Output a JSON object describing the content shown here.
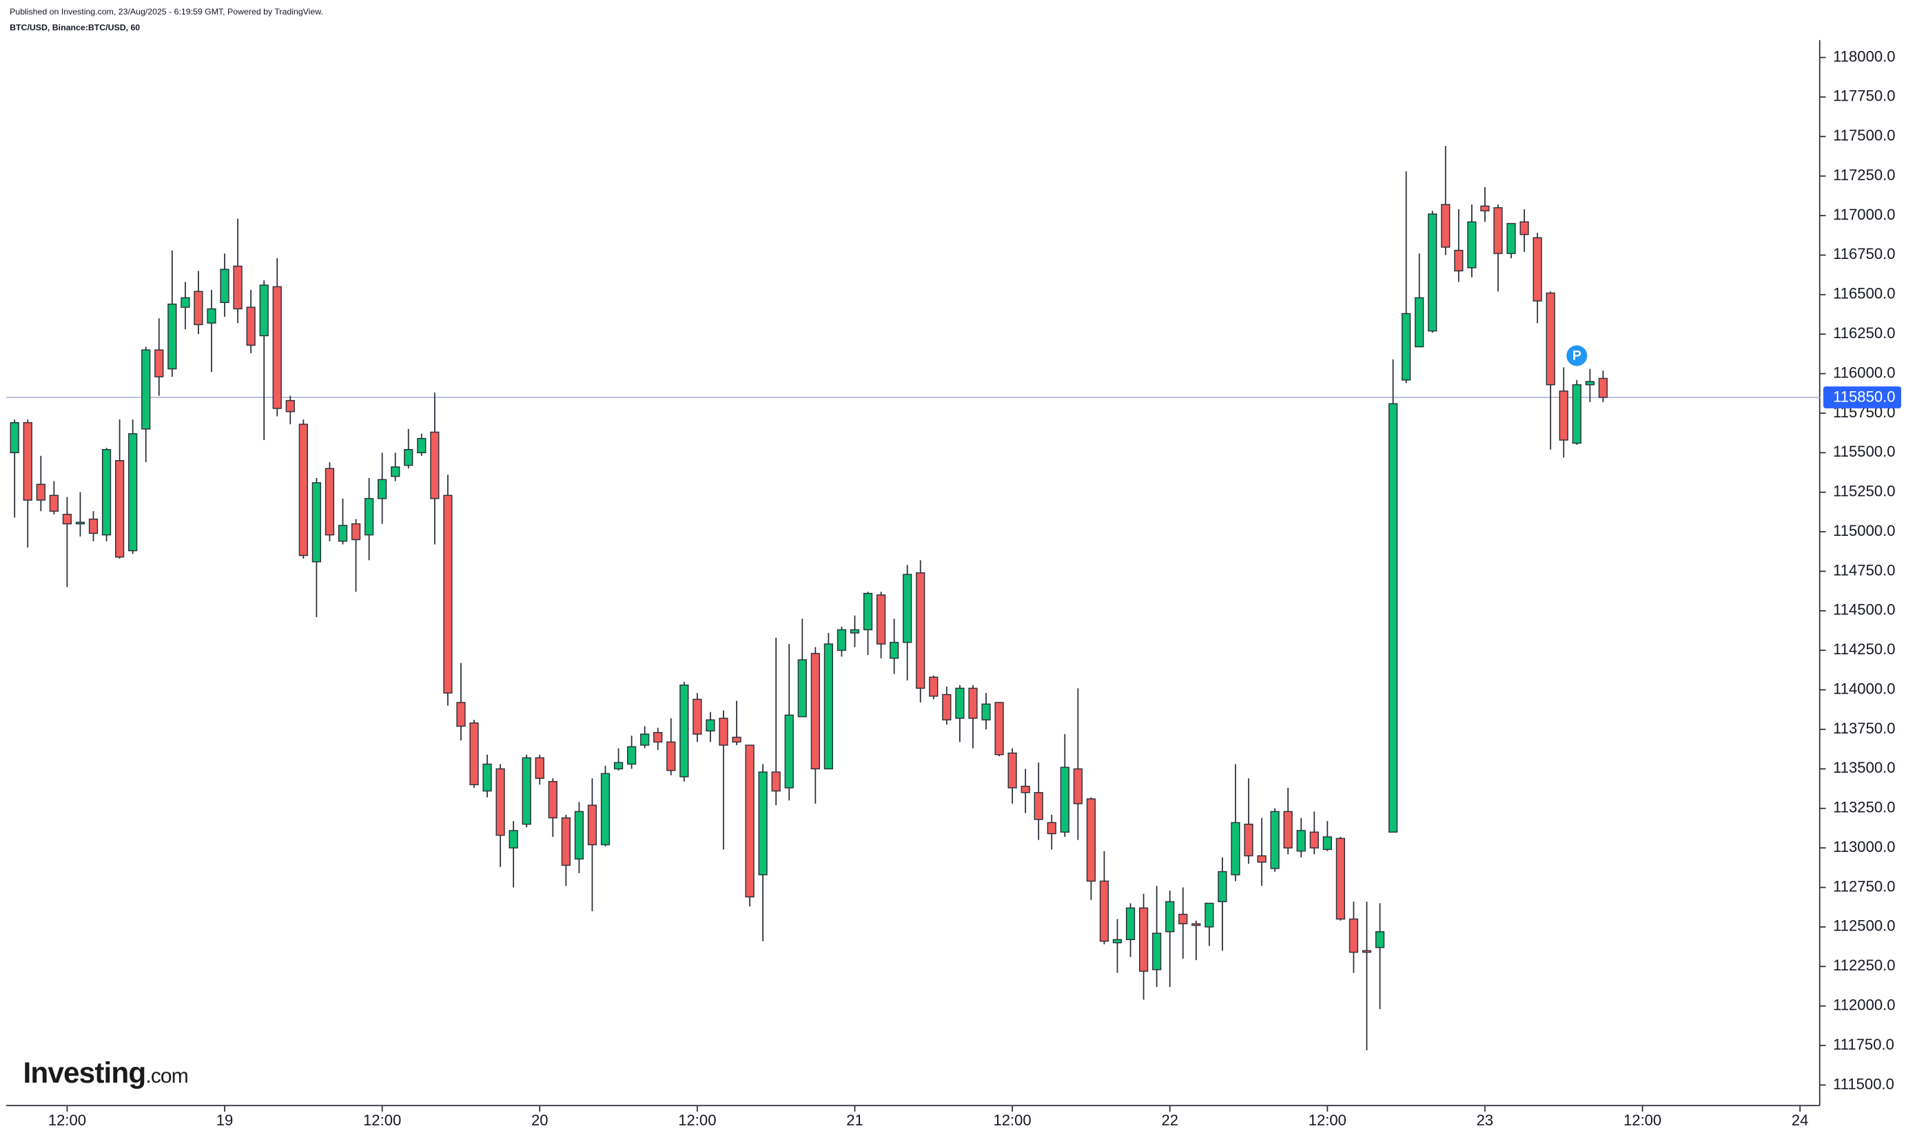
{
  "header": {
    "published": "Published on Investing.com, 23/Aug/2025 - 6:19:59 GMT, Powered by TradingView.",
    "symbol": "BTC/USD, Binance:BTC/USD, 60"
  },
  "logo": {
    "name": "Investing",
    "suffix": ".com"
  },
  "chart_data": {
    "type": "candlestick",
    "up_color": "#0cbf73",
    "down_color": "#f05d5b",
    "outline_color": "#2a2e39",
    "categories": [
      null,
      null,
      null,
      null,
      null,
      null,
      null,
      null,
      null,
      null,
      null,
      null,
      null,
      null,
      null,
      null,
      null,
      null,
      null,
      null,
      null,
      null,
      null,
      null,
      null,
      null,
      null,
      null,
      null,
      null,
      null,
      null,
      null,
      null,
      null,
      null,
      null,
      null,
      null,
      null,
      null,
      null,
      null,
      null,
      null,
      null,
      null,
      null,
      null,
      null,
      null,
      null,
      null,
      null,
      null,
      null,
      null,
      null,
      null,
      null,
      null,
      null,
      null,
      null,
      null,
      null,
      null,
      null,
      null,
      null,
      null,
      null,
      null,
      null,
      null,
      null,
      null,
      null,
      null,
      null,
      null,
      null,
      null,
      null,
      null,
      null,
      null,
      null,
      null,
      null,
      null,
      null,
      null,
      null,
      null,
      null,
      null,
      null,
      null,
      null,
      null,
      null,
      null,
      null,
      null,
      null,
      null,
      null,
      null,
      null,
      null,
      null,
      null,
      null,
      null,
      null,
      null,
      null,
      null,
      null,
      null,
      null
    ],
    "open": [
      115500,
      115690,
      115300,
      115230,
      115110,
      115050,
      115080,
      114980,
      115450,
      114880,
      115650,
      116150,
      116030,
      116420,
      116520,
      116320,
      116450,
      116680,
      116420,
      116240,
      116550,
      115830,
      115680,
      114810,
      115400,
      114940,
      115050,
      114980,
      115210,
      115350,
      115420,
      115500,
      115630,
      115230,
      113920,
      113790,
      113360,
      113500,
      113000,
      113150,
      113570,
      113420,
      113190,
      112930,
      113270,
      113020,
      113500,
      113530,
      113650,
      113730,
      113670,
      113450,
      113940,
      113740,
      113820,
      113700,
      113650,
      112830,
      113480,
      113380,
      113830,
      114230,
      113500,
      114250,
      114360,
      114380,
      114600,
      114200,
      114300,
      114740,
      114080,
      113970,
      113820,
      114010,
      113810,
      113920,
      113600,
      113390,
      113350,
      113160,
      113100,
      113500,
      113310,
      112790,
      112400,
      112420,
      112620,
      112230,
      112470,
      112580,
      112520,
      112500,
      112660,
      112830,
      113150,
      112950,
      112870,
      113230,
      112980,
      113100,
      112990,
      113060,
      112550,
      112350,
      112370,
      113100,
      115960,
      116170,
      116270,
      117070,
      116780,
      116670,
      117060,
      117050,
      116760,
      116960,
      116860,
      116510,
      115890,
      115560,
      115930,
      115970
    ],
    "high": [
      115710,
      115710,
      115480,
      115320,
      115220,
      115250,
      115130,
      115530,
      115710,
      115710,
      116170,
      116350,
      116780,
      116580,
      116650,
      116530,
      116760,
      116980,
      116530,
      116590,
      116730,
      115860,
      115710,
      115340,
      115440,
      115210,
      115080,
      115340,
      115500,
      115500,
      115650,
      115620,
      115880,
      115360,
      114170,
      113810,
      113590,
      113530,
      113170,
      113590,
      113590,
      113440,
      113210,
      113290,
      113440,
      113520,
      113630,
      113710,
      113770,
      113760,
      113820,
      114050,
      113980,
      113860,
      113870,
      113930,
      113650,
      113530,
      114330,
      114290,
      114450,
      114270,
      114360,
      114400,
      114470,
      114620,
      114620,
      114450,
      114790,
      114820,
      114090,
      114020,
      114030,
      114030,
      113980,
      113920,
      113630,
      113500,
      113540,
      113210,
      113720,
      114010,
      113320,
      112980,
      112550,
      112650,
      112710,
      112760,
      112730,
      112750,
      112540,
      112650,
      112940,
      113530,
      113440,
      113190,
      113250,
      113380,
      113190,
      113230,
      113170,
      113070,
      112660,
      112660,
      112650,
      116090,
      117280,
      116760,
      117030,
      117440,
      117040,
      117070,
      117180,
      117070,
      116950,
      117040,
      116890,
      116520,
      116040,
      115960,
      116030,
      116020
    ],
    "low": [
      115090,
      114900,
      115130,
      115110,
      114650,
      114970,
      114940,
      114940,
      114830,
      114860,
      115440,
      115860,
      115980,
      116280,
      116250,
      116010,
      116360,
      116320,
      116130,
      115580,
      115730,
      115680,
      114830,
      114460,
      114940,
      114920,
      114620,
      114820,
      115050,
      115320,
      115400,
      115480,
      114920,
      113900,
      113680,
      113380,
      113320,
      112880,
      112750,
      113130,
      113400,
      113070,
      112760,
      112840,
      112600,
      113010,
      113490,
      113500,
      113630,
      113620,
      113460,
      113420,
      113670,
      113670,
      112990,
      113650,
      112630,
      112410,
      113270,
      113300,
      113830,
      113280,
      113500,
      114210,
      114270,
      114220,
      114200,
      114100,
      114060,
      113920,
      113940,
      113780,
      113670,
      113630,
      113750,
      113580,
      113280,
      113220,
      113050,
      112990,
      113070,
      113050,
      112670,
      112390,
      112210,
      112310,
      112040,
      112120,
      112120,
      112300,
      112290,
      112380,
      112350,
      112790,
      112900,
      112760,
      112850,
      112960,
      112940,
      112960,
      112980,
      112540,
      112210,
      111720,
      111980,
      113100,
      115940,
      116170,
      116260,
      116750,
      116580,
      116610,
      116960,
      116520,
      116730,
      116770,
      116320,
      115520,
      115470,
      115550,
      115820,
      115820
    ],
    "close": [
      115690,
      115200,
      115200,
      115130,
      115050,
      115060,
      114990,
      115520,
      114840,
      115620,
      116150,
      115980,
      116440,
      116480,
      116310,
      116410,
      116660,
      116410,
      116180,
      116560,
      115780,
      115760,
      114850,
      115310,
      114980,
      115040,
      114950,
      115210,
      115330,
      115410,
      115520,
      115590,
      115210,
      113980,
      113770,
      113400,
      113530,
      113080,
      113110,
      113570,
      113440,
      113190,
      112890,
      113230,
      113020,
      113470,
      113540,
      113640,
      113720,
      113670,
      113490,
      114030,
      113720,
      113810,
      113650,
      113670,
      112690,
      113480,
      113360,
      113840,
      114190,
      113500,
      114290,
      114380,
      114380,
      114610,
      114290,
      114300,
      114730,
      114010,
      113960,
      113810,
      114010,
      113820,
      113910,
      113590,
      113380,
      113350,
      113180,
      113090,
      113510,
      113280,
      112790,
      112410,
      112420,
      112620,
      112220,
      112460,
      112660,
      112520,
      112510,
      112650,
      112850,
      113160,
      112950,
      112910,
      113230,
      113000,
      113110,
      113000,
      113070,
      112550,
      112340,
      112340,
      112470,
      115810,
      116380,
      116480,
      117010,
      116800,
      116650,
      116960,
      117030,
      116760,
      116950,
      116880,
      116460,
      115930,
      115580,
      115930,
      115950,
      115850
    ],
    "xlim": [
      -0.65,
      137.5
    ],
    "xticks": [
      {
        "value": 4,
        "label": "12:00"
      },
      {
        "value": 16,
        "label": "19"
      },
      {
        "value": 28,
        "label": "12:00"
      },
      {
        "value": 40,
        "label": "20"
      },
      {
        "value": 52,
        "label": "12:00"
      },
      {
        "value": 64,
        "label": "21"
      },
      {
        "value": 76,
        "label": "12:00"
      },
      {
        "value": 88,
        "label": "22"
      },
      {
        "value": 100,
        "label": "12:00"
      },
      {
        "value": 112,
        "label": "23"
      },
      {
        "value": 124,
        "label": "12:00"
      },
      {
        "value": 136,
        "label": "24"
      }
    ],
    "ylim": [
      111370,
      118110
    ],
    "yticks": [
      {
        "value": 111500,
        "label": "111500.0"
      },
      {
        "value": 111750,
        "label": "111750.0"
      },
      {
        "value": 112000,
        "label": "112000.0"
      },
      {
        "value": 112250,
        "label": "112250.0"
      },
      {
        "value": 112500,
        "label": "112500.0"
      },
      {
        "value": 112750,
        "label": "112750.0"
      },
      {
        "value": 113000,
        "label": "113000.0"
      },
      {
        "value": 113250,
        "label": "113250.0"
      },
      {
        "value": 113500,
        "label": "113500.0"
      },
      {
        "value": 113750,
        "label": "113750.0"
      },
      {
        "value": 114000,
        "label": "114000.0"
      },
      {
        "value": 114250,
        "label": "114250.0"
      },
      {
        "value": 114500,
        "label": "114500.0"
      },
      {
        "value": 114750,
        "label": "114750.0"
      },
      {
        "value": 115000,
        "label": "115000.0"
      },
      {
        "value": 115250,
        "label": "115250.0"
      },
      {
        "value": 115500,
        "label": "115500.0"
      },
      {
        "value": 115750,
        "label": "115750.0"
      },
      {
        "value": 116000,
        "label": "116000.0"
      },
      {
        "value": 116250,
        "label": "116250.0"
      },
      {
        "value": 116500,
        "label": "116500.0"
      },
      {
        "value": 116750,
        "label": "116750.0"
      },
      {
        "value": 117000,
        "label": "117000.0"
      },
      {
        "value": 117250,
        "label": "117250.0"
      },
      {
        "value": 117500,
        "label": "117500.0"
      },
      {
        "value": 117750,
        "label": "117750.0"
      },
      {
        "value": 118000,
        "label": "118000.0"
      }
    ],
    "current_price": {
      "value": 115850,
      "label": "115850.0"
    },
    "price_line_color": "#b2b9d3",
    "price_label_color": "#2962ff",
    "annotation": {
      "text": "P",
      "index": 119,
      "color": "#2196f3"
    }
  }
}
